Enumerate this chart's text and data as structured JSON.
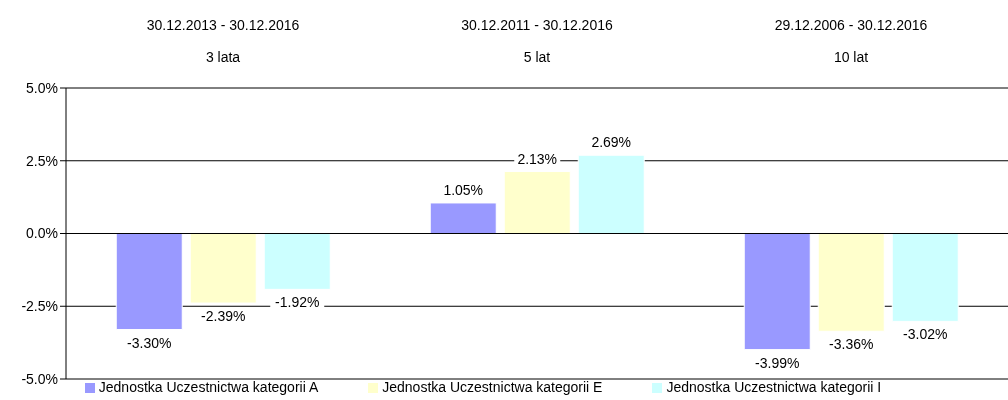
{
  "chart_data": {
    "type": "bar",
    "categories": [
      "30.12.2013 - 30.12.2016\n3 lata",
      "30.12.2011 - 30.12.2016\n5 lat",
      "29.12.2006 - 30.12.2016\n10 lat"
    ],
    "series": [
      {
        "name": "Jednostka Uczestnictwa kategorii A",
        "color": "#9999ff",
        "values": [
          -3.3,
          1.05,
          -3.99
        ],
        "value_labels": [
          "-3.30%",
          "1.05%",
          "-3.99%"
        ]
      },
      {
        "name": "Jednostka Uczestnictwa kategorii E",
        "color": "#ffffcc",
        "values": [
          -2.39,
          2.13,
          -3.36
        ],
        "value_labels": [
          "-2.39%",
          "2.13%",
          "-3.36%"
        ]
      },
      {
        "name": "Jednostka Uczestnictwa kategorii I",
        "color": "#ccffff",
        "values": [
          -1.92,
          2.69,
          -3.02
        ],
        "value_labels": [
          "-1.92%",
          "2.69%",
          "-3.02%"
        ]
      }
    ],
    "ylim": [
      -5,
      5
    ],
    "yticks": [
      {
        "value": -5,
        "label": "-5.0%"
      },
      {
        "value": -2.5,
        "label": "-2.5%"
      },
      {
        "value": 0,
        "label": "0.0%"
      },
      {
        "value": 2.5,
        "label": "2.5%"
      },
      {
        "value": 5,
        "label": "5.0%"
      }
    ],
    "grid": "y",
    "legend": "bottom"
  }
}
